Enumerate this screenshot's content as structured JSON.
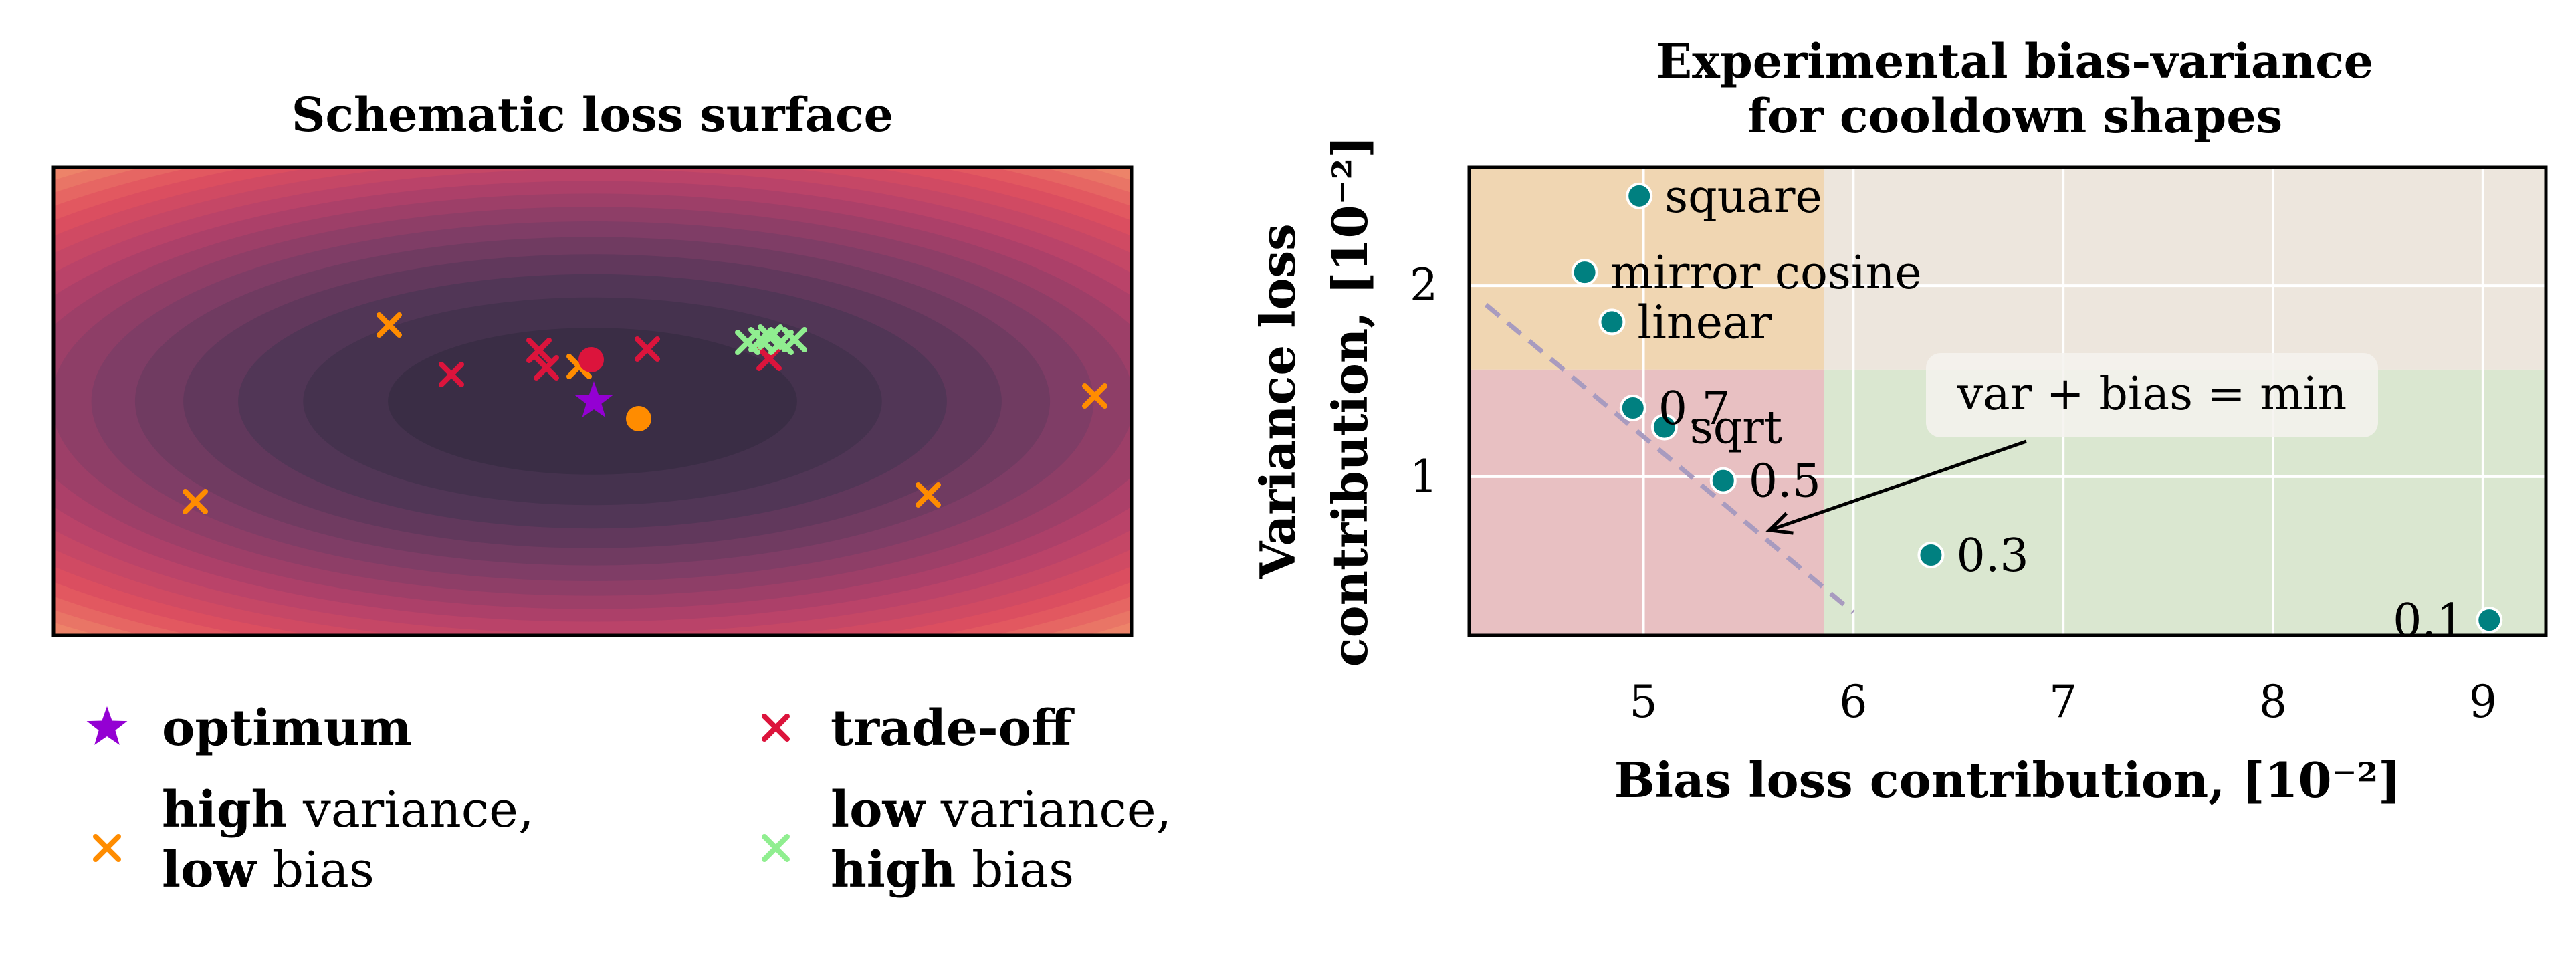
{
  "left_panel": {
    "title": "Schematic loss surface",
    "colors": {
      "optimum": "#9400d3",
      "high_variance": "#ff8c00",
      "trade_off": "#dc143c",
      "low_variance": "#90ee90"
    },
    "legend": {
      "optimum": "optimum",
      "trade_off": "trade-off",
      "high_variance_l1_bold": "high",
      "high_variance_l1_rest": " variance,",
      "high_variance_l2_bold": "low",
      "high_variance_l2_rest": " bias",
      "low_variance_l1_bold": "low",
      "low_variance_l1_rest": " variance,",
      "low_variance_l2_bold": "high",
      "low_variance_l2_rest": " bias"
    }
  },
  "chart_data": {
    "type": "scatter",
    "title_line1": "Experimental bias-variance",
    "title_line2": "for cooldown shapes",
    "xlabel": "Bias loss contribution, [10⁻²]",
    "ylabel_line1": "Variance loss",
    "ylabel_line2": "contribution, [10⁻²]",
    "xlim": [
      4.17,
      9.3
    ],
    "ylim": [
      0.17,
      2.62
    ],
    "xticks": [
      "5",
      "6",
      "7",
      "8",
      "9"
    ],
    "xtick_values": [
      5,
      6,
      7,
      8,
      9
    ],
    "yticks": [
      "1",
      "2"
    ],
    "ytick_values": [
      1,
      2
    ],
    "grid": true,
    "point_color": "#008080",
    "points": [
      {
        "label": "square",
        "x": 4.98,
        "y": 2.47
      },
      {
        "label": "mirror cosine",
        "x": 4.72,
        "y": 2.07
      },
      {
        "label": "linear",
        "x": 4.85,
        "y": 1.81
      },
      {
        "label": "0.7",
        "x": 4.95,
        "y": 1.36
      },
      {
        "label": "sqrt",
        "x": 5.1,
        "y": 1.26
      },
      {
        "label": "0.5",
        "x": 5.38,
        "y": 0.98
      },
      {
        "label": "0.3",
        "x": 6.37,
        "y": 0.59
      },
      {
        "label": "0.1",
        "x": 9.03,
        "y": 0.25
      }
    ],
    "regions": {
      "threshold_x": 5.86,
      "threshold_y": 1.56,
      "colors": {
        "top_left": "#f0d6b2",
        "top_right": "#ede6dd",
        "bottom_left": "#e8c0c2",
        "bottom_right": "#dae7d0"
      }
    },
    "trend_line": {
      "x": [
        4.25,
        6.0
      ],
      "y": [
        1.9,
        0.29
      ],
      "color": "#a89bbf"
    },
    "annotation": {
      "text": "var + bias = min",
      "arrow_to": [
        5.6,
        0.72
      ]
    }
  }
}
